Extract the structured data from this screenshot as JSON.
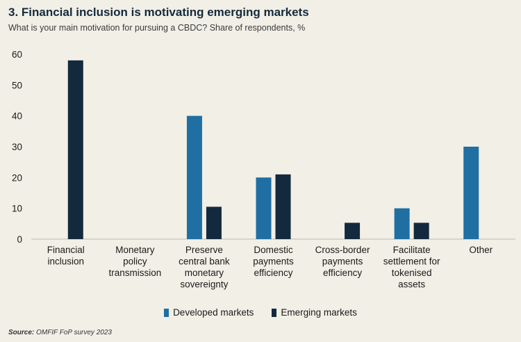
{
  "header": {
    "title": "3. Financial inclusion is motivating emerging markets",
    "subtitle": "What is your main motivation for pursuing a CBDC? Share of respondents, %"
  },
  "chart_data": {
    "type": "bar",
    "categories": [
      [
        "Financial",
        "inclusion"
      ],
      [
        "Monetary",
        "policy",
        "transmission"
      ],
      [
        "Preserve",
        "central bank",
        "monetary",
        "sovereignty"
      ],
      [
        "Domestic",
        "payments",
        "efficiency"
      ],
      [
        "Cross-border",
        "payments",
        "efficiency"
      ],
      [
        "Facilitate",
        "settlement for",
        "tokenised",
        "assets"
      ],
      [
        "Other"
      ]
    ],
    "series": [
      {
        "name": "Developed markets",
        "color": "#1f6fa3",
        "values": [
          0,
          0,
          40,
          20,
          0,
          10,
          30
        ]
      },
      {
        "name": "Emerging markets",
        "color": "#13293d",
        "values": [
          58,
          0,
          10.5,
          21,
          5.3,
          5.3,
          0
        ]
      }
    ],
    "ylim": [
      0,
      60
    ],
    "yticks": [
      0,
      10,
      20,
      30,
      40,
      50,
      60
    ],
    "grid": false,
    "legend": "bottom"
  },
  "source": {
    "label": "Source:",
    "text": " OMFIF FoP survey 2023"
  }
}
